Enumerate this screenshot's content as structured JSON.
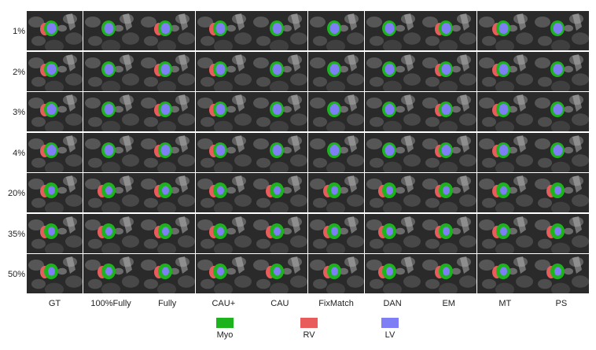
{
  "rows": [
    "1%",
    "2%",
    "3%",
    "4%",
    "20%",
    "35%",
    "50%"
  ],
  "columns": [
    "GT",
    "100%Fully",
    "Fully",
    "CAU+",
    "CAU",
    "FixMatch",
    "DAN",
    "EM",
    "MT",
    "PS"
  ],
  "legend": [
    {
      "label": "Myo",
      "color": "#1db31d"
    },
    {
      "label": "RV",
      "color": "#e85c5c"
    },
    {
      "label": "LV",
      "color": "#7f7ff5"
    }
  ]
}
